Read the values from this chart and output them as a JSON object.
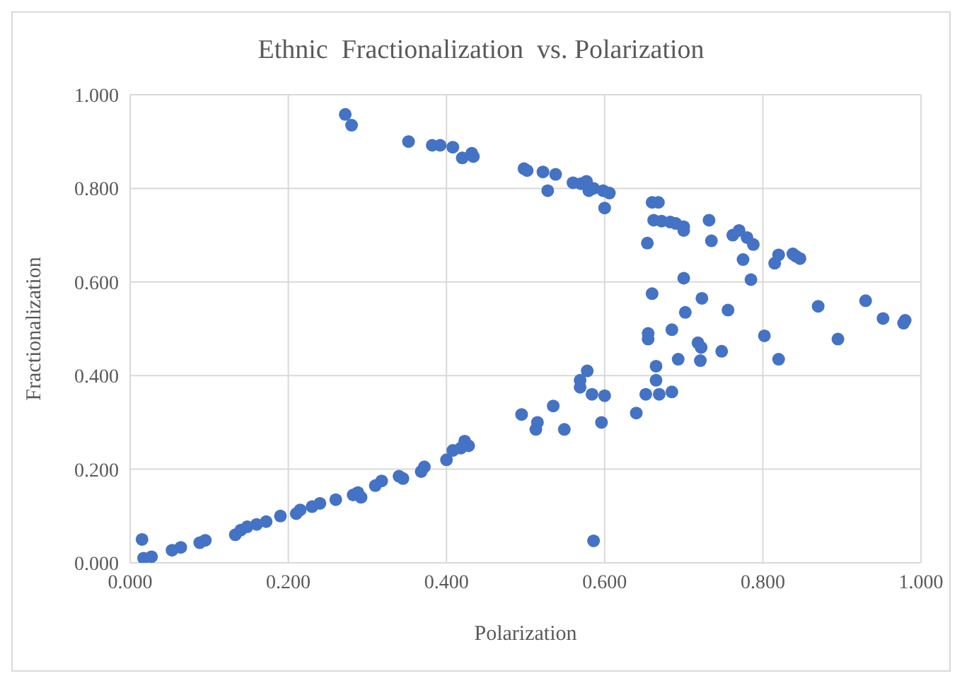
{
  "chart_data": {
    "type": "scatter",
    "title": "Ethnic  Fractionalization  vs. Polarization",
    "xlabel": "Polarization",
    "ylabel": "Fractionalization",
    "marker": "circle",
    "grid": true,
    "xlim": [
      0,
      1
    ],
    "ylim": [
      0,
      1
    ],
    "xticks": [
      {
        "value": 0,
        "label": "0.000"
      },
      {
        "value": 0.2,
        "label": "0.200"
      },
      {
        "value": 0.4,
        "label": "0.400"
      },
      {
        "value": 0.6,
        "label": "0.600"
      },
      {
        "value": 0.8,
        "label": "0.800"
      },
      {
        "value": 1,
        "label": "1.000"
      }
    ],
    "yticks": [
      {
        "value": 0,
        "label": "0.000"
      },
      {
        "value": 0.2,
        "label": "0.200"
      },
      {
        "value": 0.4,
        "label": "0.400"
      },
      {
        "value": 0.6,
        "label": "0.600"
      },
      {
        "value": 0.8,
        "label": "0.800"
      },
      {
        "value": 1,
        "label": "1.000"
      }
    ],
    "series": [
      {
        "color": "#4472c4",
        "x": [
          0.272,
          0.28,
          0.352,
          0.382,
          0.392,
          0.408,
          0.42,
          0.432,
          0.434,
          0.498,
          0.502,
          0.522,
          0.528,
          0.538,
          0.56,
          0.57,
          0.577,
          0.58,
          0.586,
          0.598,
          0.6,
          0.606,
          0.66,
          0.668,
          0.654,
          0.662,
          0.672,
          0.683,
          0.69,
          0.7,
          0.7,
          0.732,
          0.735,
          0.762,
          0.77,
          0.775,
          0.78,
          0.788,
          0.785,
          0.815,
          0.82,
          0.838,
          0.842,
          0.847,
          0.66,
          0.7,
          0.655,
          0.702,
          0.723,
          0.756,
          0.87,
          0.93,
          0.952,
          0.978,
          0.98,
          0.685,
          0.578,
          0.569,
          0.569,
          0.584,
          0.6,
          0.535,
          0.495,
          0.515,
          0.513,
          0.549,
          0.596,
          0.586,
          0.64,
          0.652,
          0.669,
          0.685,
          0.665,
          0.665,
          0.693,
          0.721,
          0.748,
          0.718,
          0.722,
          0.82,
          0.802,
          0.895,
          0.655,
          0.015,
          0.017,
          0.027,
          0.053,
          0.064,
          0.088,
          0.095,
          0.133,
          0.14,
          0.148,
          0.16,
          0.172,
          0.19,
          0.21,
          0.215,
          0.23,
          0.24,
          0.26,
          0.282,
          0.292,
          0.288,
          0.31,
          0.318,
          0.34,
          0.345,
          0.368,
          0.372,
          0.4,
          0.408,
          0.423,
          0.428,
          0.418
        ],
        "values": [
          0.958,
          0.935,
          0.9,
          0.892,
          0.892,
          0.888,
          0.865,
          0.875,
          0.868,
          0.842,
          0.838,
          0.835,
          0.795,
          0.83,
          0.812,
          0.81,
          0.815,
          0.795,
          0.8,
          0.795,
          0.758,
          0.79,
          0.77,
          0.77,
          0.683,
          0.732,
          0.73,
          0.728,
          0.725,
          0.718,
          0.71,
          0.732,
          0.688,
          0.7,
          0.71,
          0.648,
          0.695,
          0.68,
          0.605,
          0.64,
          0.658,
          0.66,
          0.655,
          0.65,
          0.575,
          0.608,
          0.49,
          0.535,
          0.565,
          0.54,
          0.548,
          0.56,
          0.522,
          0.512,
          0.518,
          0.498,
          0.41,
          0.39,
          0.375,
          0.36,
          0.357,
          0.335,
          0.317,
          0.3,
          0.285,
          0.285,
          0.3,
          0.047,
          0.32,
          0.36,
          0.36,
          0.365,
          0.39,
          0.42,
          0.435,
          0.432,
          0.452,
          0.47,
          0.46,
          0.435,
          0.485,
          0.478,
          0.478,
          0.05,
          0.01,
          0.013,
          0.027,
          0.033,
          0.043,
          0.048,
          0.06,
          0.07,
          0.077,
          0.082,
          0.088,
          0.1,
          0.105,
          0.113,
          0.12,
          0.127,
          0.135,
          0.145,
          0.14,
          0.15,
          0.165,
          0.175,
          0.185,
          0.18,
          0.195,
          0.205,
          0.22,
          0.24,
          0.26,
          0.25,
          0.245
        ]
      }
    ]
  }
}
